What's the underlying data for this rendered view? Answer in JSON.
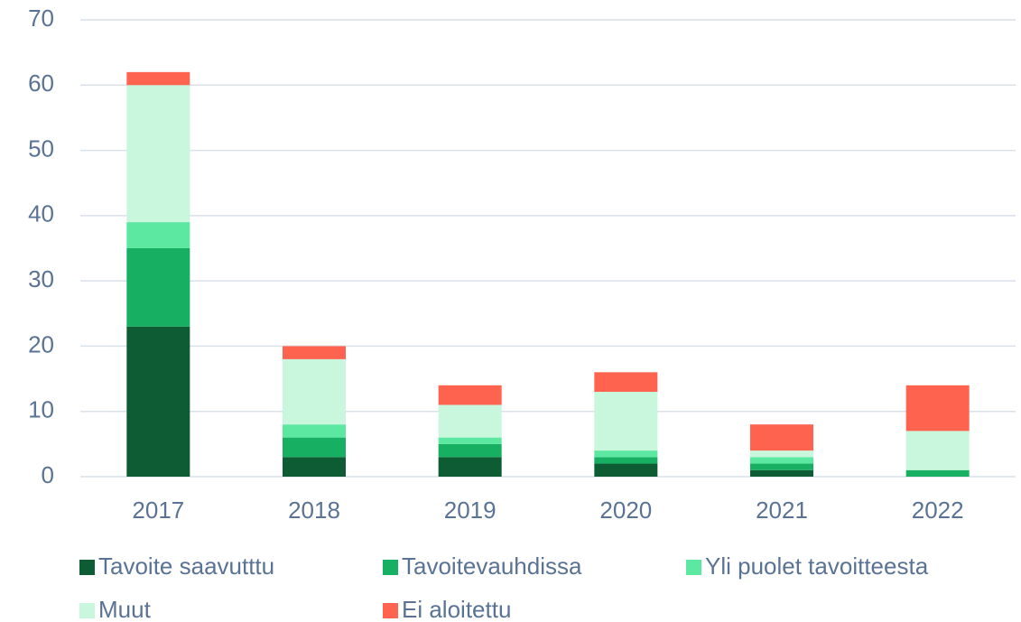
{
  "chart_data": {
    "type": "stacked_bar",
    "categories": [
      "2017",
      "2018",
      "2019",
      "2020",
      "2021",
      "2022"
    ],
    "series": [
      {
        "name": "Tavoite saavutttu",
        "color": "#0d5c33",
        "values": [
          23,
          3,
          3,
          2,
          1,
          0
        ]
      },
      {
        "name": "Tavoitevauhdissa",
        "color": "#17b062",
        "values": [
          12,
          3,
          2,
          1,
          1,
          1
        ]
      },
      {
        "name": "Yli puolet tavoitteesta",
        "color": "#5ce8a0",
        "values": [
          4,
          2,
          1,
          1,
          1,
          0
        ]
      },
      {
        "name": "Muut",
        "color": "#c8f7dd",
        "values": [
          21,
          10,
          5,
          9,
          1,
          6
        ]
      },
      {
        "name": "Ei aloitettu",
        "color": "#fe634f",
        "values": [
          2,
          2,
          3,
          3,
          4,
          7
        ]
      }
    ],
    "ylim": [
      0,
      70
    ],
    "yticks": [
      0,
      10,
      20,
      30,
      40,
      50,
      60,
      70
    ],
    "grid": true,
    "legend": "bottom"
  }
}
